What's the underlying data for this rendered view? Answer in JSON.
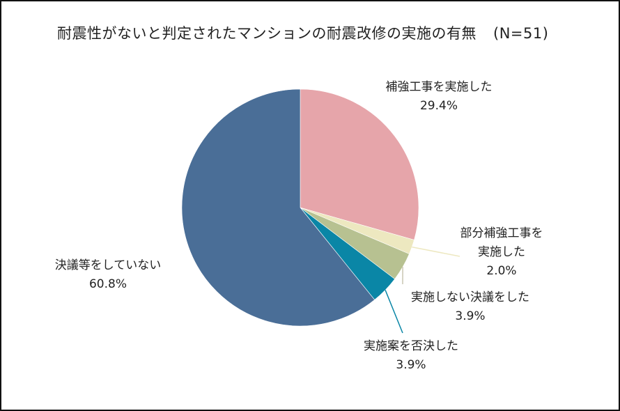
{
  "title": "耐震性がないと判定されたマンションの耐震改修の実施の有無",
  "sample_size": "(N=51)",
  "chart_data": {
    "type": "pie",
    "title": "耐震性がないと判定されたマンションの耐震改修の実施の有無 (N=51)",
    "start_angle_deg": 0,
    "direction": "clockwise",
    "slices": [
      {
        "label": "補強工事を実施した",
        "value": 29.4,
        "value_label": "29.4%",
        "color": "#E6A5AA"
      },
      {
        "label": "部分補強工事を実施した",
        "value": 2.0,
        "value_label": "2.0%",
        "color": "#EDE8C0"
      },
      {
        "label": "実施しない決議をした",
        "value": 3.9,
        "value_label": "3.9%",
        "color": "#B7C191"
      },
      {
        "label": "実施案を否決した",
        "value": 3.9,
        "value_label": "3.9%",
        "color": "#0A86A6"
      },
      {
        "label": "決議等をしていない",
        "value": 60.8,
        "value_label": "60.8%",
        "color": "#4A6E97"
      }
    ]
  },
  "labels": {
    "s0": {
      "line1": "補強工事を実施した",
      "pct": "29.4%"
    },
    "s1": {
      "line1": "部分補強工事を",
      "line2": "実施した",
      "pct": "2.0%"
    },
    "s2": {
      "line1": "実施しない決議をした",
      "pct": "3.9%"
    },
    "s3": {
      "line1": "実施案を否決した",
      "pct": "3.9%"
    },
    "s4": {
      "line1": "決議等をしていない",
      "pct": "60.8%"
    }
  }
}
